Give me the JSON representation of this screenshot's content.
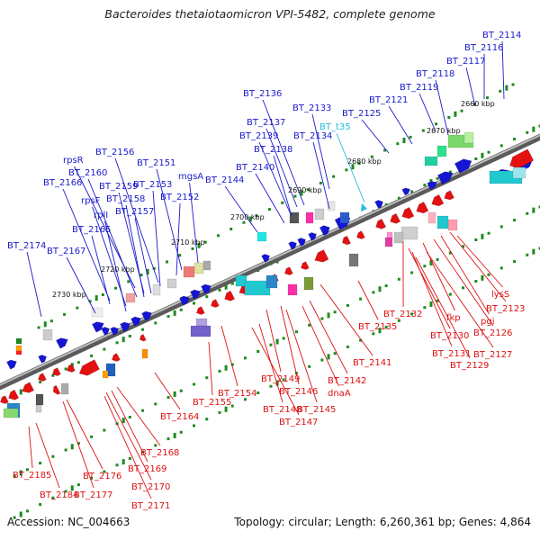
{
  "title": "Bacteroides thetaiotaomicron VPI-5482, complete genome",
  "footer": {
    "accession": "Accession: NC_004663",
    "summary": "Topology: circular; Length: 6,260,361 bp; Genes: 4,864"
  },
  "colors": {
    "plus_strand_label": "#1a1acc",
    "minus_strand_label": "#dd1111",
    "trna_label": "#22bbdd",
    "backbone": "#777777",
    "tick": "#1e8a1e"
  },
  "scale_ticks": [
    {
      "label": "2660 kbp",
      "kbp": 2660
    },
    {
      "label": "2670 kbp",
      "kbp": 2670
    },
    {
      "label": "2680 kbp",
      "kbp": 2680
    },
    {
      "label": "2690 kbp",
      "kbp": 2690
    },
    {
      "label": "2700 kbp",
      "kbp": 2700
    },
    {
      "label": "2710 kbp",
      "kbp": 2710
    },
    {
      "label": "2720 kbp",
      "kbp": 2720
    },
    {
      "label": "2730 kbp",
      "kbp": 2730
    }
  ],
  "labels_top": [
    "BT_2114",
    "BT_2116",
    "BT_2117",
    "BT_2118",
    "BT_2119",
    "BT_2121",
    "BT_2125",
    "BT_t35",
    "BT_2133",
    "BT_2136",
    "BT_2137",
    "BT_2139",
    "BT_2134",
    "BT_2138",
    "BT_2140",
    "BT_2144",
    "mgsA",
    "BT_2151",
    "BT_2156",
    "rpsR",
    "BT_2160",
    "BT_2153",
    "BT_2166",
    "BT_2159",
    "rpsF",
    "BT_2158",
    "BT_2152",
    "rplI",
    "BT_2157",
    "BT_2165",
    "BT_2174",
    "BT_2167"
  ],
  "labels_bottom": [
    "lysS",
    "BT_2123",
    "pgi",
    "BT_2126",
    "fkp",
    "BT_2127",
    "BT_2132",
    "BT_2130",
    "BT_2131",
    "BT_2129",
    "BT_2135",
    "BT_2141",
    "BT_2142",
    "dnaA",
    "BT_2149",
    "BT_2146",
    "BT_2145",
    "BT_2148",
    "BT_2147",
    "BT_2154",
    "BT_2155",
    "BT_2164",
    "BT_2168",
    "BT_2169",
    "BT_2170",
    "BT_2171",
    "BT_2176",
    "BT_2177",
    "BT_2185",
    "BT_2184"
  ]
}
